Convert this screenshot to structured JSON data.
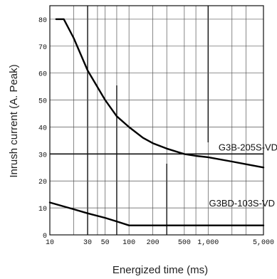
{
  "chart_data": {
    "type": "line",
    "xlabel": "Energized time (ms)",
    "ylabel": "Inrush current (A. Peak)",
    "x_scale": "log",
    "xlim": [
      10,
      5000
    ],
    "ylim": [
      0,
      85
    ],
    "x_ticks": [
      10,
      30,
      50,
      100,
      200,
      500,
      1000,
      5000
    ],
    "x_tick_labels": [
      "10",
      "30",
      "50",
      "100",
      "200",
      "500",
      "1,000",
      "5,000"
    ],
    "y_ticks": [
      0,
      10,
      20,
      30,
      40,
      50,
      60,
      70,
      80
    ],
    "y_tick_labels": [
      "0",
      "10",
      "20",
      "30",
      "40",
      "50",
      "60",
      "70",
      "80"
    ],
    "grid": true,
    "series": [
      {
        "name": "G3B-205S-VD",
        "x": [
          12,
          15,
          20,
          30,
          50,
          70,
          100,
          150,
          200,
          300,
          500,
          700,
          1000,
          2000,
          3000,
          5000
        ],
        "y": [
          80,
          80,
          73,
          61,
          50,
          44,
          40,
          36,
          34,
          32,
          30,
          29.3,
          28.8,
          27.2,
          26.2,
          25
        ]
      },
      {
        "name": "G3BD-103S-VD",
        "x": [
          10,
          20,
          30,
          50,
          70,
          100,
          200,
          500,
          1000,
          5000
        ],
        "y": [
          12,
          9.5,
          8,
          6.3,
          5,
          3.5,
          3.5,
          3.5,
          3.5,
          3.5
        ]
      }
    ]
  }
}
